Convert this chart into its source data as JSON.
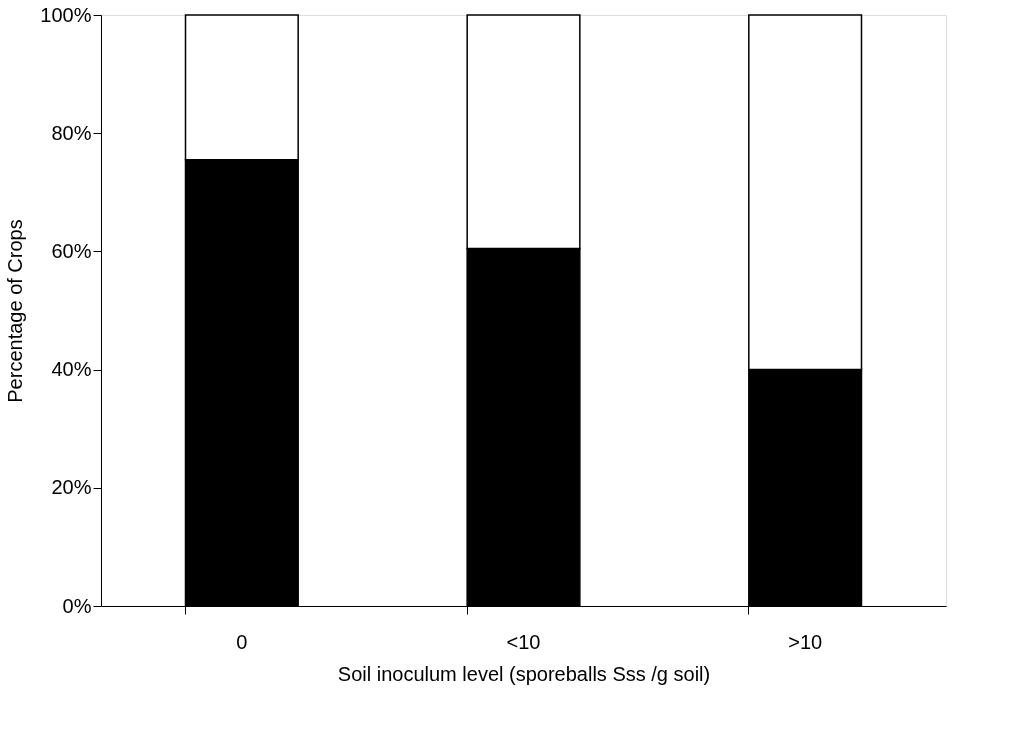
{
  "chart_data": {
    "type": "bar",
    "stacked": true,
    "xlabel": "Soil inoculum level (sporeballs Sss /g soil)",
    "ylabel": "Percentage of Crops",
    "categories": [
      "0",
      "<10",
      ">10"
    ],
    "series": [
      {
        "color": "#000000",
        "values": [
          75.5,
          60.5,
          40
        ]
      },
      {
        "color": "#ffffff",
        "values": [
          24.5,
          39.5,
          60
        ]
      }
    ],
    "ylim": [
      0,
      100
    ],
    "yticks": [
      {
        "value": 0,
        "label": "0%"
      },
      {
        "value": 20,
        "label": "20%"
      },
      {
        "value": 40,
        "label": "40%"
      },
      {
        "value": 60,
        "label": "60%"
      },
      {
        "value": 80,
        "label": "80%"
      },
      {
        "value": 100,
        "label": "100%"
      }
    ],
    "grid": false,
    "legend": false
  }
}
